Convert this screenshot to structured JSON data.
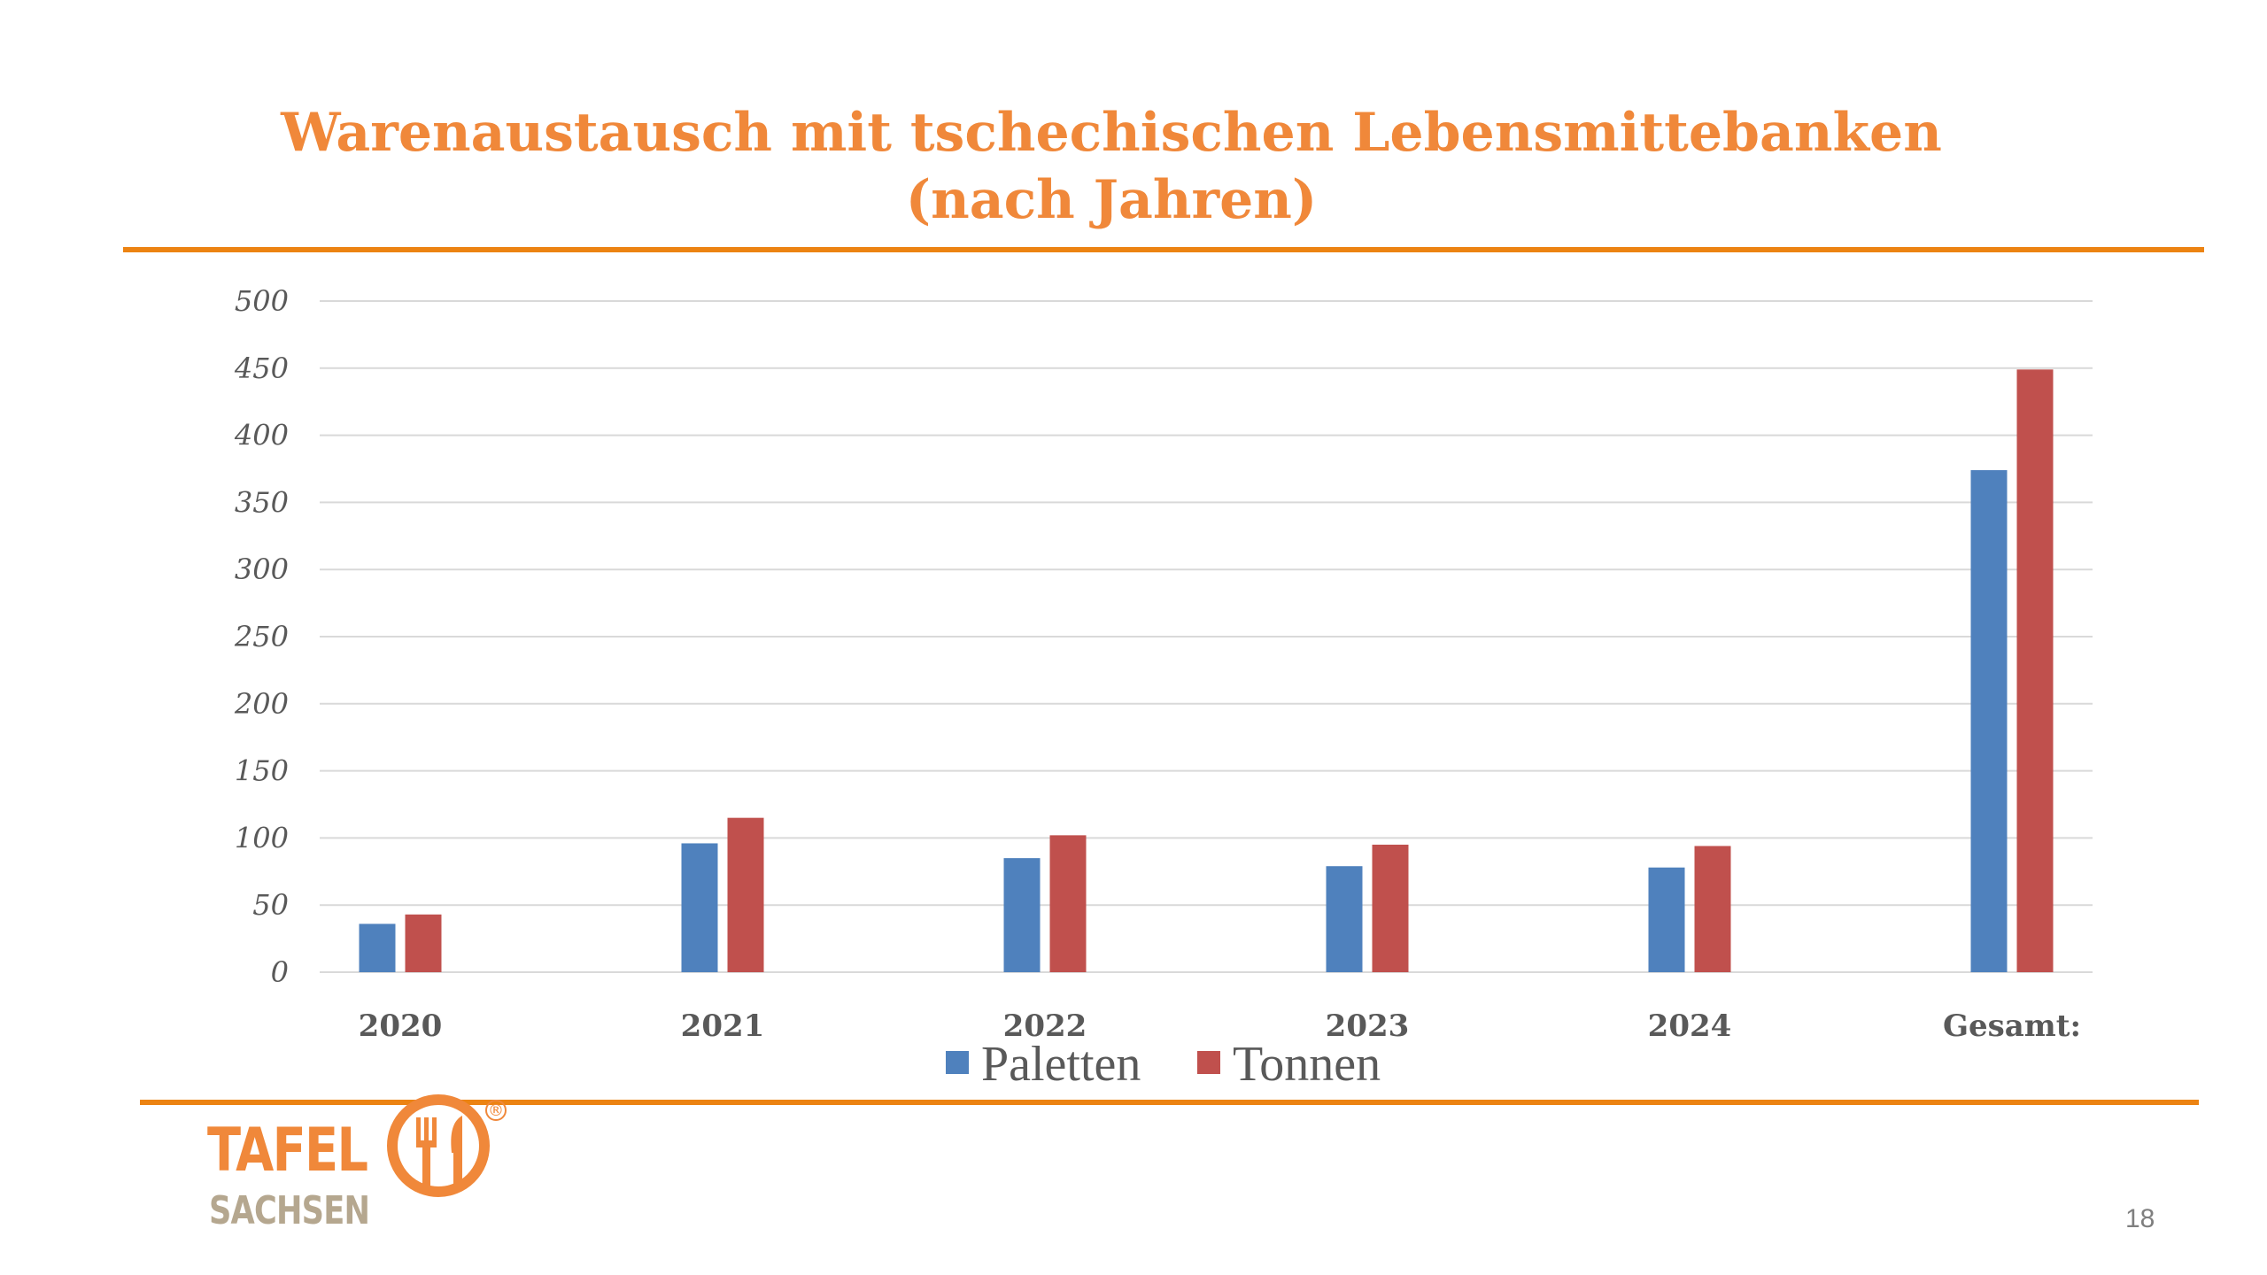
{
  "slide": {
    "title_line1": "Warenaustausch mit tschechischen Lebensmittebanken",
    "title_line2": "(nach Jahren)",
    "page_number": "18",
    "accent_color": "#ec8312"
  },
  "logo": {
    "line1": "TAFEL",
    "line2": "SACHSEN",
    "registered_mark": "®",
    "icon": "fork-knife-plate-icon"
  },
  "chart_data": {
    "type": "bar",
    "title": "Warenaustausch mit tschechischen Lebensmittebanken (nach Jahren)",
    "xlabel": "",
    "ylabel": "",
    "categories": [
      "2020",
      "2021",
      "2022",
      "2023",
      "2024",
      "Gesamt:"
    ],
    "series": [
      {
        "name": "Paletten",
        "color": "#4f81bd",
        "values": [
          36,
          96,
          85,
          79,
          78,
          374
        ]
      },
      {
        "name": "Tonnen",
        "color": "#c0504d",
        "values": [
          43,
          115,
          102,
          95,
          94,
          449
        ]
      }
    ],
    "ylim": [
      0,
      500
    ],
    "yticks": [
      0,
      50,
      100,
      150,
      200,
      250,
      300,
      350,
      400,
      450,
      500
    ],
    "grid": true,
    "legend": "bottom"
  }
}
